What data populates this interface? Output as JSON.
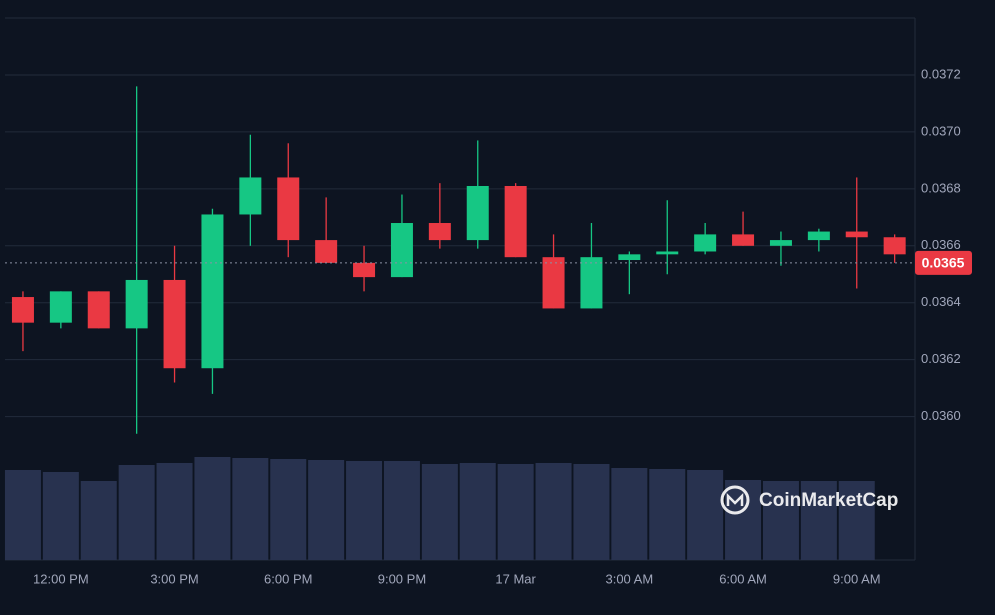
{
  "chart_data": {
    "type": "candlestick",
    "categories": [
      null,
      "12:00 PM",
      null,
      null,
      "3:00 PM",
      null,
      null,
      "6:00 PM",
      null,
      null,
      "9:00 PM",
      null,
      null,
      "17 Mar",
      null,
      null,
      "3:00 AM",
      null,
      null,
      "6:00 AM",
      null,
      null,
      "9:00 AM",
      null
    ],
    "open": [
      0.03642,
      0.03633,
      0.03644,
      0.03631,
      0.03648,
      0.03617,
      0.03671,
      0.03684,
      0.03662,
      0.03654,
      0.03649,
      0.03668,
      0.03662,
      0.03681,
      0.03656,
      0.03638,
      0.03655,
      0.03657,
      0.03658,
      0.03664,
      0.0366,
      0.03662,
      0.03665,
      0.03663
    ],
    "high": [
      0.03644,
      0.03644,
      0.03644,
      0.03716,
      0.0366,
      0.03673,
      0.03699,
      0.03696,
      0.03677,
      0.0366,
      0.03678,
      0.03682,
      0.03697,
      0.03682,
      0.03664,
      0.03668,
      0.03658,
      0.03676,
      0.03668,
      0.03672,
      0.03665,
      0.03666,
      0.03684,
      0.03664
    ],
    "low": [
      0.03623,
      0.03631,
      0.03631,
      0.03594,
      0.03612,
      0.03608,
      0.0366,
      0.03656,
      0.03654,
      0.03644,
      0.03649,
      0.03659,
      0.03659,
      0.03656,
      0.03638,
      0.03638,
      0.03643,
      0.0365,
      0.03657,
      0.0366,
      0.03653,
      0.03658,
      0.03645,
      0.03654
    ],
    "close": [
      0.03633,
      0.03644,
      0.03631,
      0.03648,
      0.03617,
      0.03671,
      0.03684,
      0.03662,
      0.03654,
      0.03649,
      0.03668,
      0.03662,
      0.03681,
      0.03656,
      0.03638,
      0.03656,
      0.03657,
      0.03658,
      0.03664,
      0.0366,
      0.03662,
      0.03665,
      0.03663,
      0.03657
    ],
    "volume": [
      90,
      88,
      79,
      95,
      97,
      103,
      102,
      101,
      100,
      99,
      99,
      96,
      97,
      96,
      97,
      96,
      92,
      91,
      90,
      80,
      79,
      79,
      79,
      null
    ],
    "up_color": "#16c784",
    "down_color": "#ea3943",
    "volume_color": "#28324f",
    "ylim": [
      0.0355,
      0.0374
    ],
    "yticks": [
      {
        "value": 0.036,
        "label": "0.0360"
      },
      0.0362,
      0.0364,
      0.0366,
      0.0368,
      {
        "value": 0.037,
        "label": "0.0370"
      },
      0.0372
    ],
    "y2lim": [
      0,
      200
    ],
    "grid": true,
    "current_price": {
      "value": 0.03654,
      "label": "0.0365"
    },
    "watermark": "CoinMarketCap"
  }
}
